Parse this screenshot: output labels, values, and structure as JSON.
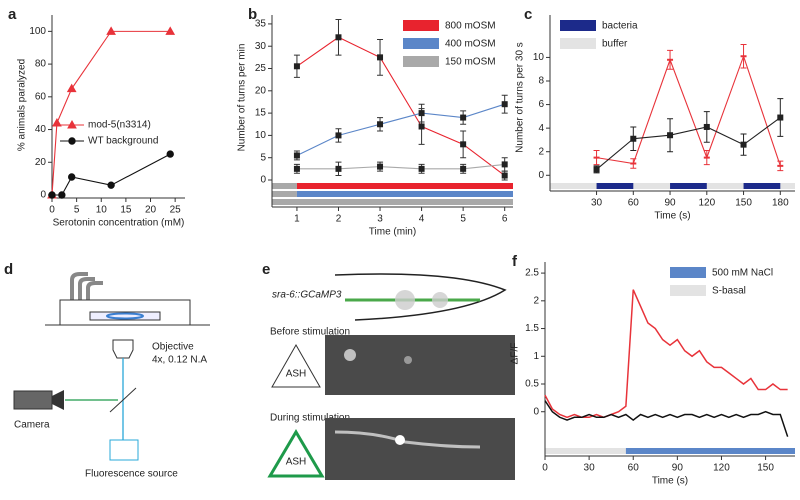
{
  "chart_data": [
    {
      "type": "line",
      "panel": "a",
      "x_label": "Serotonin concentration (mM)",
      "y_label": "% animals paralyzed",
      "xlim": [
        0,
        27
      ],
      "ylim": [
        0,
        110
      ],
      "xticks": [
        0,
        5,
        10,
        15,
        20,
        25
      ],
      "yticks": [
        0,
        20,
        40,
        60,
        80,
        100
      ],
      "legend_position": "center right",
      "legend_style": "marker",
      "series": [
        {
          "name": "mod-5(n3314)",
          "color": "#e8333a",
          "marker": "triangle",
          "x": [
            0,
            1,
            4,
            12,
            24
          ],
          "values": [
            0,
            44,
            65,
            100,
            100
          ]
        },
        {
          "name": "WT background",
          "color": "#111111",
          "marker": "circle",
          "x": [
            0,
            2,
            4,
            12,
            24
          ],
          "values": [
            0,
            0,
            11,
            6,
            25
          ]
        }
      ]
    },
    {
      "type": "line",
      "panel": "b",
      "x_label": "Time (min)",
      "y_label": "Number of turns per min",
      "xlim": [
        0.4,
        6.2
      ],
      "ylim": [
        0,
        37
      ],
      "xticks": [
        1,
        2,
        3,
        4,
        5,
        6
      ],
      "yticks": [
        0,
        5,
        10,
        15,
        20,
        25,
        30,
        35
      ],
      "legend_position": "upper right",
      "legend_style": "box",
      "marker_color": "#222222",
      "series": [
        {
          "name": "800 mOSM",
          "color": "#e8232e",
          "marker": "square",
          "x": [
            1,
            2,
            3,
            4,
            5,
            6
          ],
          "values": [
            25.5,
            32,
            27.5,
            12,
            8,
            1
          ],
          "errors": [
            2.5,
            4,
            4,
            4,
            3,
            1
          ]
        },
        {
          "name": "400 mOSM",
          "color": "#5b86c8",
          "marker": "square",
          "x": [
            1,
            2,
            3,
            4,
            5,
            6
          ],
          "values": [
            5.5,
            10,
            12.5,
            15,
            14,
            17
          ],
          "errors": [
            1,
            1.5,
            1.5,
            2,
            1.5,
            2
          ]
        },
        {
          "name": "150 mOSM",
          "color": "#a9a9a9",
          "marker": "square",
          "x": [
            1,
            2,
            3,
            4,
            5,
            6
          ],
          "values": [
            2.5,
            2.5,
            3,
            2.5,
            2.5,
            3.5
          ],
          "errors": [
            1,
            1.5,
            1,
            1,
            1,
            1.5
          ]
        }
      ],
      "stimulus": [
        [
          {
            "from": 0.4,
            "to": 1,
            "color": "#a9a9a9"
          },
          {
            "from": 1,
            "to": 6.2,
            "color": "#e8232e"
          }
        ],
        [
          {
            "from": 0.4,
            "to": 1,
            "color": "#a9a9a9"
          },
          {
            "from": 1,
            "to": 6.2,
            "color": "#5b86c8"
          }
        ],
        [
          {
            "from": 0.4,
            "to": 6.2,
            "color": "#a9a9a9"
          }
        ]
      ]
    },
    {
      "type": "line",
      "panel": "c",
      "x_label": "Time (s)",
      "y_label": "Number of turns per  30 s",
      "xlim": [
        -8,
        192
      ],
      "ylim": [
        -0.4,
        13.6
      ],
      "xticks": [
        30,
        60,
        90,
        120,
        150,
        180
      ],
      "yticks": [
        0,
        2,
        4,
        6,
        8,
        10
      ],
      "legend_position": "upper left",
      "legend": [
        {
          "name": "bacteria",
          "color": "#1c2a8a"
        },
        {
          "name": "buffer",
          "color": "#e3e3e3"
        }
      ],
      "series": [
        {
          "color": "#e8333a",
          "marker": "tick",
          "x": [
            30,
            60,
            90,
            120,
            150,
            180
          ],
          "values": [
            1.5,
            1,
            9.8,
            1.5,
            10.1,
            0.8
          ],
          "errors": [
            0.6,
            0.4,
            0.8,
            0.6,
            1,
            0.4
          ]
        },
        {
          "color": "#222222",
          "marker": "square",
          "x": [
            30,
            60,
            90,
            120,
            150,
            180
          ],
          "values": [
            0.5,
            3.1,
            3.4,
            4.1,
            2.6,
            4.9
          ],
          "errors": [
            0.3,
            1,
            1.4,
            1.3,
            0.9,
            1.6
          ]
        }
      ],
      "stimulus": [
        [
          {
            "from": -8,
            "to": 192,
            "color": "#e3e3e3"
          },
          {
            "from": 30,
            "to": 60,
            "color": "#1c2a8a"
          },
          {
            "from": 90,
            "to": 120,
            "color": "#1c2a8a"
          },
          {
            "from": 150,
            "to": 180,
            "color": "#1c2a8a"
          }
        ]
      ]
    },
    {
      "type": "line",
      "panel": "f",
      "x_label": "Time (s)",
      "y_label": "ΔF/F",
      "xlim": [
        0,
        170
      ],
      "ylim": [
        -0.6,
        2.7
      ],
      "xticks": [
        0,
        30,
        60,
        90,
        120,
        150
      ],
      "yticks": [
        0,
        0.5,
        1,
        1.5,
        2,
        2.5
      ],
      "legend_position": "upper right",
      "legend": [
        {
          "name": "500 mM NaCl",
          "color": "#5b86c8"
        },
        {
          "name": "S-basal",
          "color": "#e3e3e3"
        }
      ],
      "series": [
        {
          "color": "#e8333a",
          "marker": "none",
          "x": [
            0,
            5,
            10,
            15,
            20,
            25,
            30,
            35,
            40,
            45,
            50,
            55,
            60,
            65,
            70,
            75,
            80,
            85,
            90,
            95,
            100,
            105,
            110,
            115,
            120,
            125,
            130,
            135,
            140,
            145,
            150,
            155,
            160,
            165
          ],
          "values": [
            0.3,
            0.05,
            -0.05,
            -0.1,
            -0.05,
            -0.1,
            -0.1,
            -0.05,
            -0.1,
            -0.05,
            0,
            0.1,
            2.2,
            1.9,
            1.6,
            1.5,
            1.3,
            1.2,
            1.3,
            1.1,
            1,
            1.1,
            0.9,
            0.8,
            0.8,
            0.7,
            0.6,
            0.5,
            0.6,
            0.4,
            0.4,
            0.5,
            0.4,
            0.4
          ]
        },
        {
          "color": "#111111",
          "marker": "none",
          "x": [
            0,
            5,
            10,
            15,
            20,
            25,
            30,
            35,
            40,
            45,
            50,
            55,
            60,
            65,
            70,
            75,
            80,
            85,
            90,
            95,
            100,
            105,
            110,
            115,
            120,
            125,
            130,
            135,
            140,
            145,
            150,
            155,
            160,
            165
          ],
          "values": [
            0.2,
            0,
            -0.1,
            -0.15,
            -0.1,
            -0.1,
            -0.05,
            -0.1,
            -0.1,
            -0.05,
            -0.1,
            -0.05,
            -0.15,
            -0.05,
            -0.1,
            -0.05,
            -0.1,
            -0.05,
            -0.1,
            -0.05,
            -0.05,
            -0.1,
            -0.05,
            -0.1,
            -0.05,
            -0.1,
            -0.05,
            -0.1,
            -0.05,
            -0.05,
            0,
            -0.05,
            -0.05,
            -0.45
          ]
        }
      ],
      "stimulus": [
        [
          {
            "from": 0,
            "to": 55,
            "color": "#e3e3e3"
          },
          {
            "from": 55,
            "to": 170,
            "color": "#5b86c8"
          }
        ]
      ]
    }
  ],
  "diagram_d": {
    "panel": "d",
    "objective": "Objective",
    "objective_spec": "4x, 0.12 N.A",
    "camera": "Camera",
    "source": "Fluorescence source"
  },
  "diagram_e": {
    "panel": "e",
    "strain": "sra-6::GCaMP3",
    "before": "Before stimulation",
    "before_neuron": "ASH",
    "during": "During stimulation",
    "during_neuron": "ASH"
  }
}
